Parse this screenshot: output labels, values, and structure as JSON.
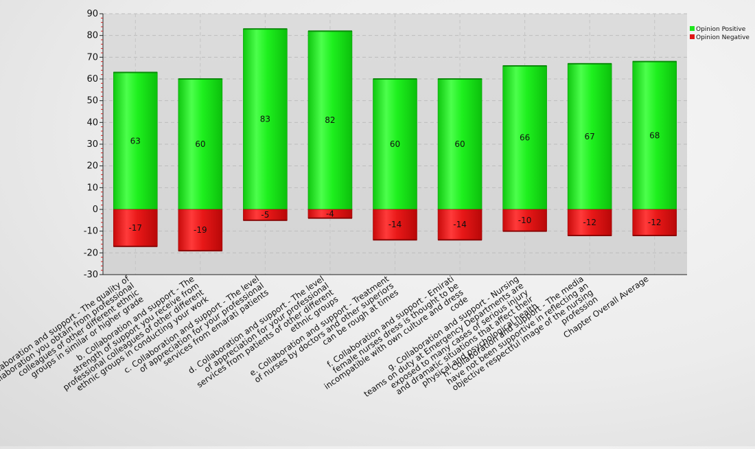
{
  "chart_data": {
    "type": "bar",
    "stacked": true,
    "categories": [
      "Collaboration and support - The quality of collaboration you obtain from professional colleagues of other different ethnic groups in similar or higher grade",
      "b. Collaboration and support - The strength of support you receive from professional colleagues of other different ethnic groups in conducting your work",
      "c. Collaboration and support - The level of appreciation for your professional services from emarati patients",
      "d. Collaboration and support - The level of appreciation for your professional services from patients of other different ethnic groups",
      "e. Collaboration and support - Treatment of nurses by doctors and other superiors can be rough at times",
      "f. Collaboration and support - Emirati female nurses dress is thought to be incompatible with own culture and dress code",
      "g. Collaboration and support - Nursing teams on duty at Emergency Departments are exposed to many cases of serious injury and dramatic situations that affect their physical and psychological health",
      "h. Collaboration and support - The media have not been supportive in reflecting an objective respectful image of the nursing profession",
      "Chapter Overall Average"
    ],
    "series": [
      {
        "name": "Opinion Positive",
        "values": [
          63,
          60,
          83,
          82,
          60,
          60,
          66,
          67,
          68
        ],
        "color": "#1ee61e"
      },
      {
        "name": "Opinion Negative",
        "values": [
          -17,
          -19,
          -5,
          -4,
          -14,
          -14,
          -10,
          -12,
          -12
        ],
        "color": "#e01414"
      }
    ],
    "ylim": [
      -30,
      90
    ],
    "yticks": [
      "-30",
      "-20",
      "-10",
      "0",
      "10",
      "20",
      "30",
      "40",
      "50",
      "60",
      "70",
      "80",
      "90"
    ],
    "grid": true,
    "legend_position": "top-right",
    "title": "",
    "xlabel": "",
    "ylabel": ""
  }
}
